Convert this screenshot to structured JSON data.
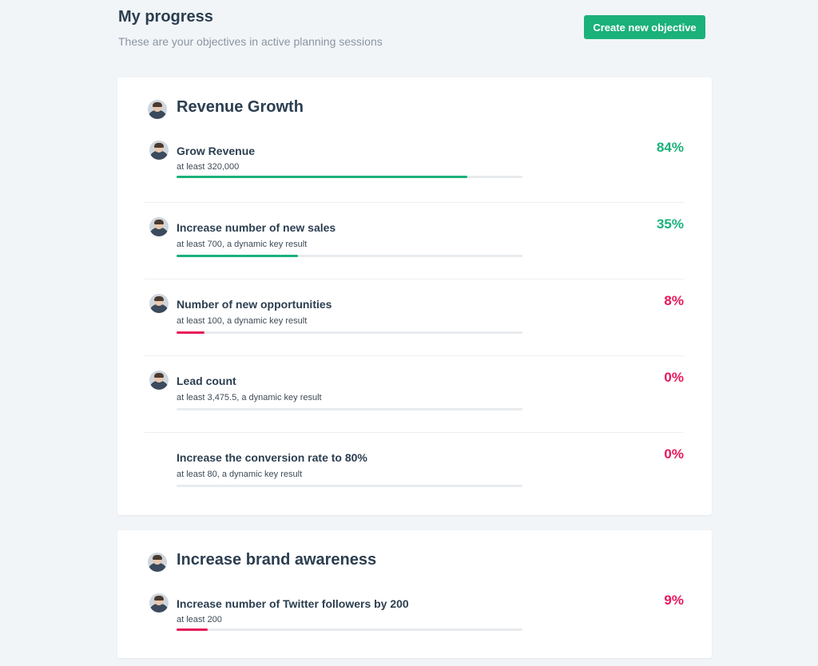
{
  "header": {
    "title": "My progress",
    "subtitle": "These are your objectives in active planning sessions",
    "create_label": "Create new objective"
  },
  "colors": {
    "good": "#1bb17a",
    "bad": "#e8185a",
    "track": "#e8ebee"
  },
  "objectives": [
    {
      "title": "Revenue Growth",
      "key_results": [
        {
          "title": "Grow Revenue",
          "sub": "at least 320,000",
          "pct": "84%",
          "progress": 0.84,
          "status": "good",
          "avatar": true
        },
        {
          "title": "Increase number of new sales",
          "sub": "at least 700, a dynamic key result",
          "pct": "35%",
          "progress": 0.35,
          "status": "good",
          "avatar": true
        },
        {
          "title": "Number of new opportunities",
          "sub": "at least 100, a dynamic key result",
          "pct": "8%",
          "progress": 0.08,
          "status": "bad",
          "avatar": true
        },
        {
          "title": "Lead count",
          "sub": "at least 3,475.5, a dynamic key result",
          "pct": "0%",
          "progress": 0,
          "status": "bad",
          "avatar": true
        },
        {
          "title": "Increase the conversion rate to 80%",
          "sub": "at least 80, a dynamic key result",
          "pct": "0%",
          "progress": 0,
          "status": "bad",
          "avatar": false
        }
      ]
    },
    {
      "title": "Increase brand awareness",
      "key_results": [
        {
          "title": "Increase number of Twitter followers by 200",
          "sub": "at least 200",
          "pct": "9%",
          "progress": 0.09,
          "status": "bad",
          "avatar": true
        }
      ]
    }
  ]
}
